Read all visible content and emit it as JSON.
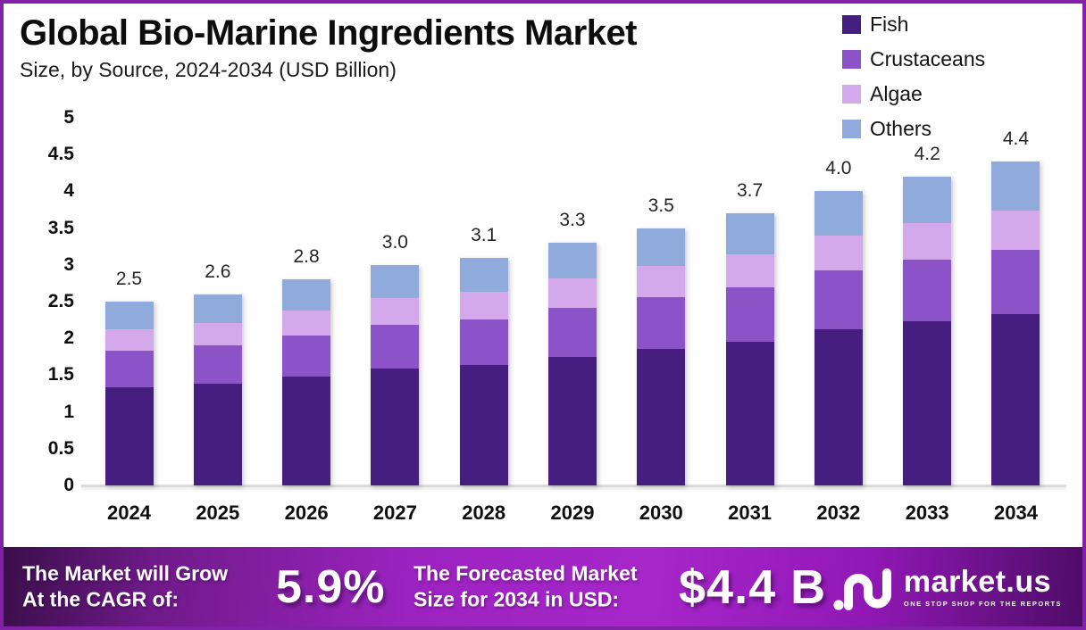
{
  "header": {
    "title": "Global Bio-Marine Ingredients Market",
    "subtitle": "Size, by Source, 2024-2034 (USD Billion)"
  },
  "chart_data": {
    "type": "bar",
    "stacked": true,
    "title": "Global Bio-Marine Ingredients Market",
    "subtitle": "Size, by Source, 2024-2034 (USD Billion)",
    "unit": "USD Billion",
    "categories": [
      "2024",
      "2025",
      "2026",
      "2027",
      "2028",
      "2029",
      "2030",
      "2031",
      "2032",
      "2033",
      "2034"
    ],
    "series": [
      {
        "name": "Fish",
        "color": "#451e7f",
        "values": [
          1.33,
          1.38,
          1.48,
          1.59,
          1.64,
          1.75,
          1.86,
          1.96,
          2.12,
          2.23,
          2.33
        ]
      },
      {
        "name": "Crustaceans",
        "color": "#8c52c7",
        "values": [
          0.5,
          0.52,
          0.56,
          0.6,
          0.62,
          0.66,
          0.7,
          0.74,
          0.8,
          0.84,
          0.88
        ]
      },
      {
        "name": "Algae",
        "color": "#d4a9ec",
        "values": [
          0.3,
          0.31,
          0.34,
          0.36,
          0.37,
          0.4,
          0.42,
          0.44,
          0.48,
          0.5,
          0.53
        ]
      },
      {
        "name": "Others",
        "color": "#90abdb",
        "values": [
          0.37,
          0.39,
          0.42,
          0.45,
          0.47,
          0.49,
          0.52,
          0.56,
          0.6,
          0.63,
          0.66
        ]
      }
    ],
    "totals_labels": [
      "2.5",
      "2.6",
      "2.8",
      "3.0",
      "3.1",
      "3.3",
      "3.5",
      "3.7",
      "4.0",
      "4.2",
      "4.4"
    ],
    "ylim": [
      0,
      5
    ],
    "yticks": [
      "5",
      "4.5",
      "4",
      "3.5",
      "3",
      "2.5",
      "2",
      "1.5",
      "1",
      "0.5",
      "0"
    ],
    "grid": false,
    "legend_position": "top-right"
  },
  "banner": {
    "cagr_label_line1": "The Market will Grow",
    "cagr_label_line2": "At the CAGR of:",
    "cagr_value": "5.9%",
    "forecast_label_line1": "The Forecasted Market",
    "forecast_label_line2": "Size for 2034 in USD:",
    "forecast_value": "$4.4 B",
    "logo_text": "market.us",
    "logo_tagline": "ONE STOP SHOP FOR THE REPORTS"
  }
}
